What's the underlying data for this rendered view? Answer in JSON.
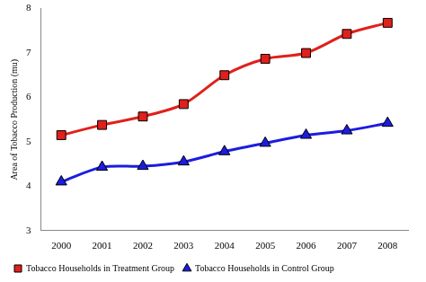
{
  "chart_data": {
    "type": "line",
    "y_label": "Area of Tobacco Production (mu)",
    "categories": [
      "2000",
      "2001",
      "2002",
      "2003",
      "2004",
      "2005",
      "2006",
      "2007",
      "2008"
    ],
    "series": [
      {
        "name": "Tobacco Households in Treatment Group",
        "color": "#e0201b",
        "marker": "square",
        "values": [
          5.15,
          5.38,
          5.57,
          5.85,
          6.5,
          6.87,
          7.0,
          7.43,
          7.68
        ]
      },
      {
        "name": "Tobacco Households in Control Group",
        "color": "#1c1ce0",
        "marker": "triangle",
        "values": [
          4.1,
          4.43,
          4.45,
          4.55,
          4.78,
          4.97,
          5.15,
          5.25,
          5.42
        ]
      }
    ],
    "ylim": [
      3,
      8
    ],
    "yticks": [
      3,
      4,
      5,
      6,
      7,
      8
    ],
    "grid": false,
    "legend": "bottom"
  }
}
